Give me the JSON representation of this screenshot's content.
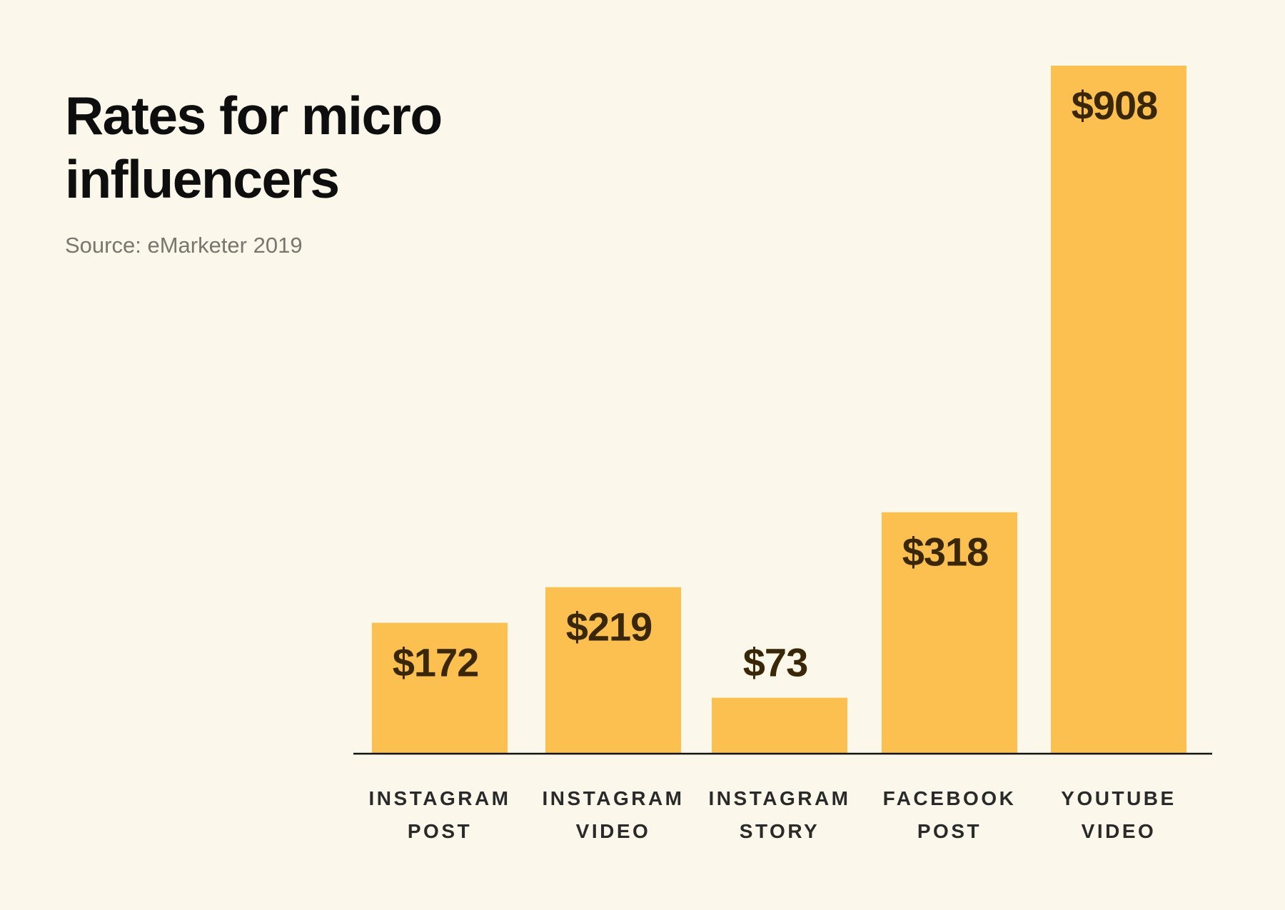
{
  "chart_data": {
    "type": "bar",
    "title_lines": [
      "Rates for micro",
      "influencers"
    ],
    "source": "Source: eMarketer 2019",
    "categories": [
      [
        "INSTAGRAM",
        "POST"
      ],
      [
        "INSTAGRAM",
        "VIDEO"
      ],
      [
        "INSTAGRAM",
        "STORY"
      ],
      [
        "FACEBOOK",
        "POST"
      ],
      [
        "YOUTUBE",
        "VIDEO"
      ]
    ],
    "values": [
      172,
      219,
      73,
      318,
      908
    ],
    "value_labels": [
      "$172",
      "$219",
      "$73",
      "$318",
      "$908"
    ],
    "ylim": [
      0,
      908
    ],
    "xlabel": "",
    "ylabel": "",
    "grid": false,
    "colors": {
      "bar": "#fbc04f",
      "axis": "#111111",
      "background": "#fbf7ea",
      "value_text": "#3a2708"
    }
  }
}
